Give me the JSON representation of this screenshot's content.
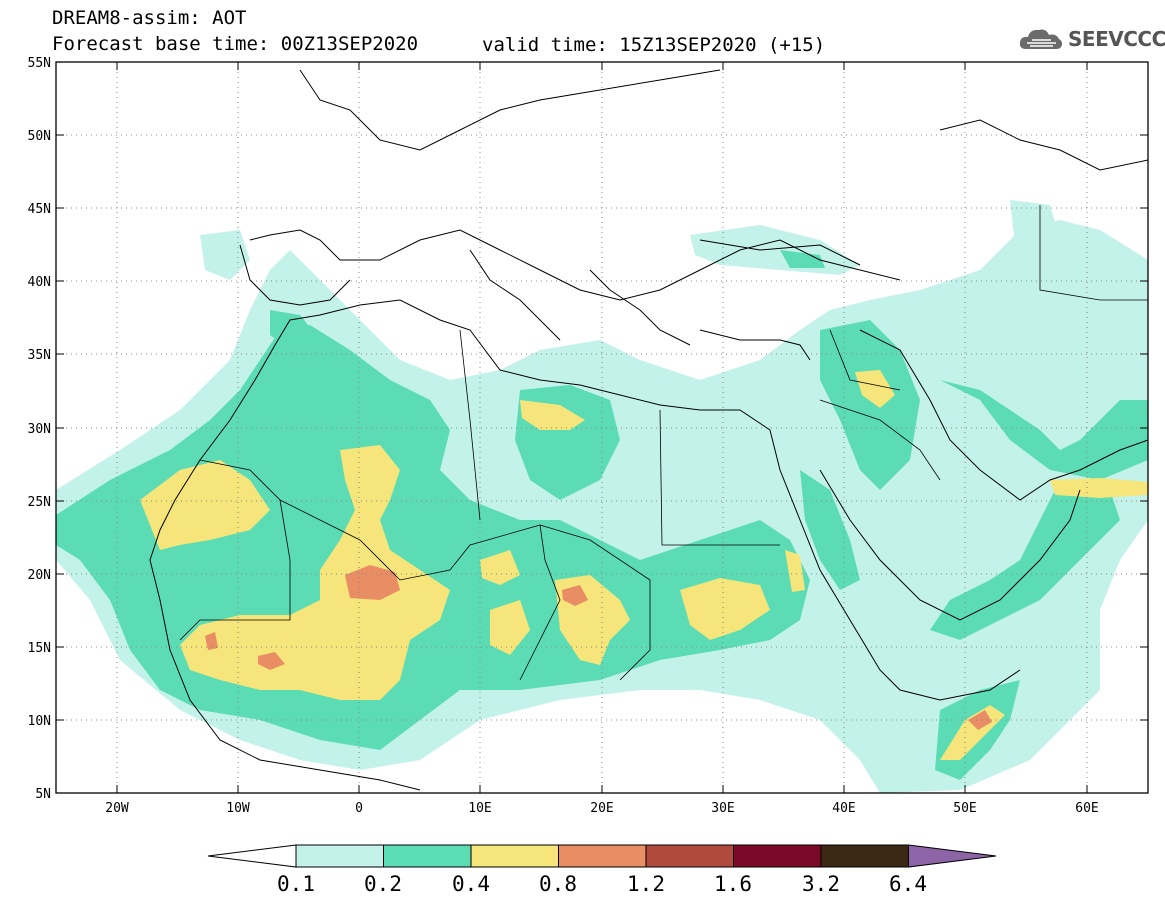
{
  "title_line1": "DREAM8-assim: AOT",
  "title_line2": "Forecast base time: 00Z13SEP2020",
  "valid_time": "valid time: 15Z13SEP2020 (+15)",
  "logo": {
    "text": "SEEVCCC",
    "icon": "cloud-icon"
  },
  "lat_labels": [
    "55N",
    "50N",
    "45N",
    "40N",
    "35N",
    "30N",
    "25N",
    "20N",
    "15N",
    "10N",
    "5N"
  ],
  "lon_labels": [
    "20W",
    "10W",
    "0",
    "10E",
    "20E",
    "30E",
    "40E",
    "50E",
    "60E"
  ],
  "colorbar": {
    "levels": [
      "0.1",
      "0.2",
      "0.4",
      "0.8",
      "1.2",
      "1.6",
      "3.2",
      "6.4"
    ],
    "colors": [
      "#ffffff",
      "#c3f2ea",
      "#5cdcb4",
      "#f5e57a",
      "#e88d64",
      "#b04a3c",
      "#7a0a28",
      "#3c2814",
      "#8e64a8"
    ]
  },
  "palette": {
    "c1": "#c3f2ea",
    "c2": "#5cdcb4",
    "c3": "#f5e57a",
    "c4": "#e88d64"
  }
}
